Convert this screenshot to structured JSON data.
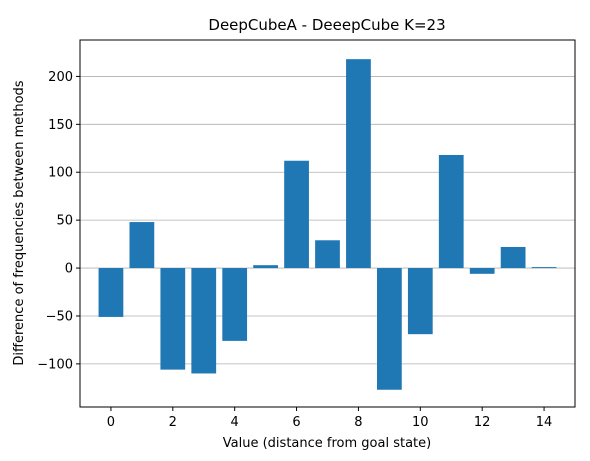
{
  "chart_data": {
    "type": "bar",
    "title": "DeepCubeA - DeeepCube K=23",
    "xlabel": "Value (distance from goal state)",
    "ylabel": "Difference of frequencies between methods",
    "x": [
      0,
      1,
      2,
      3,
      4,
      5,
      6,
      7,
      8,
      9,
      10,
      11,
      12,
      13,
      14
    ],
    "values": [
      -51,
      48,
      -106,
      -110,
      -76,
      3,
      112,
      29,
      218,
      -127,
      -69,
      118,
      -6,
      22,
      1
    ],
    "xlim": [
      -1,
      15
    ],
    "ylim": [
      -145,
      238
    ],
    "xticks": [
      0,
      2,
      4,
      6,
      8,
      10,
      12,
      14
    ],
    "xtick_labels": [
      "0",
      "2",
      "4",
      "6",
      "8",
      "10",
      "12",
      "14"
    ],
    "yticks": [
      -100,
      -50,
      0,
      50,
      100,
      150,
      200
    ],
    "ytick_labels": [
      "−100",
      "−50",
      "0",
      "50",
      "100",
      "150",
      "200"
    ],
    "grid": "y-major",
    "bar_color": "#1f77b4",
    "grid_color": "#b0b0b0"
  }
}
